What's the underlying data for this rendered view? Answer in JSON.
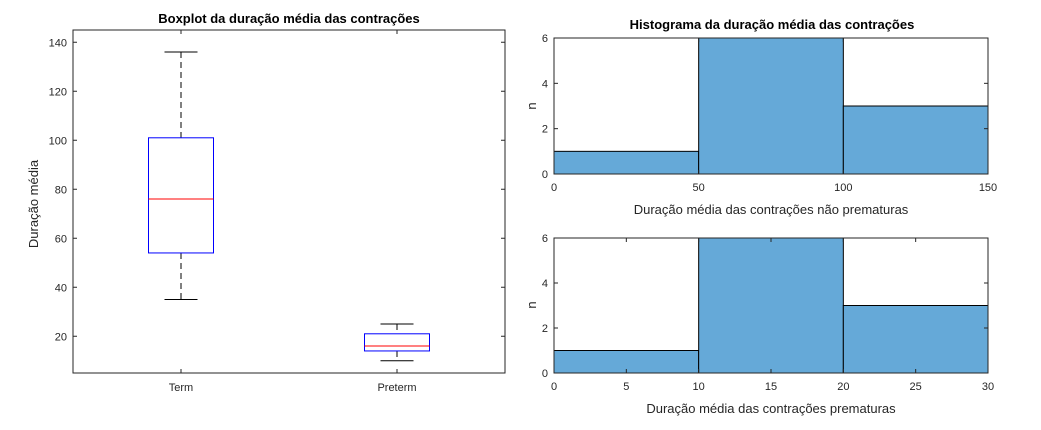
{
  "chart_data": [
    {
      "type": "box",
      "title": "Boxplot da duração média das contrações",
      "xlabel": "",
      "ylabel": "Duração média",
      "ylim": [
        5,
        145
      ],
      "yticks": [
        20,
        40,
        60,
        80,
        100,
        120,
        140
      ],
      "categories": [
        "Term",
        "Preterm"
      ],
      "boxes": [
        {
          "name": "Term",
          "whisker_low": 35,
          "q1": 54,
          "median": 76,
          "q3": 101,
          "whisker_high": 136
        },
        {
          "name": "Preterm",
          "whisker_low": 10,
          "q1": 14,
          "median": 16,
          "q3": 21,
          "whisker_high": 25
        }
      ],
      "colors": {
        "box": "#0000ff",
        "median": "#ff0000",
        "whisker": "#000000"
      }
    },
    {
      "type": "histogram",
      "title": "Histograma da duração média das contrações",
      "xlabel": "Duração média das contrações não prematuras",
      "ylabel": "n",
      "xlim": [
        0,
        150
      ],
      "ylim": [
        0,
        6
      ],
      "xticks": [
        0,
        50,
        100,
        150
      ],
      "yticks": [
        0,
        2,
        4,
        6
      ],
      "bins": [
        {
          "from": 0,
          "to": 50,
          "count": 1
        },
        {
          "from": 50,
          "to": 100,
          "count": 6
        },
        {
          "from": 100,
          "to": 150,
          "count": 3
        }
      ],
      "color": "#65a9d8"
    },
    {
      "type": "histogram",
      "title": "",
      "xlabel": "Duração média das contrações prematuras",
      "ylabel": "n",
      "xlim": [
        0,
        30
      ],
      "ylim": [
        0,
        6
      ],
      "xticks": [
        0,
        5,
        10,
        15,
        20,
        25,
        30
      ],
      "yticks": [
        0,
        2,
        4,
        6
      ],
      "bins": [
        {
          "from": 0,
          "to": 10,
          "count": 1
        },
        {
          "from": 10,
          "to": 20,
          "count": 6
        },
        {
          "from": 20,
          "to": 30,
          "count": 3
        }
      ],
      "color": "#65a9d8"
    }
  ]
}
